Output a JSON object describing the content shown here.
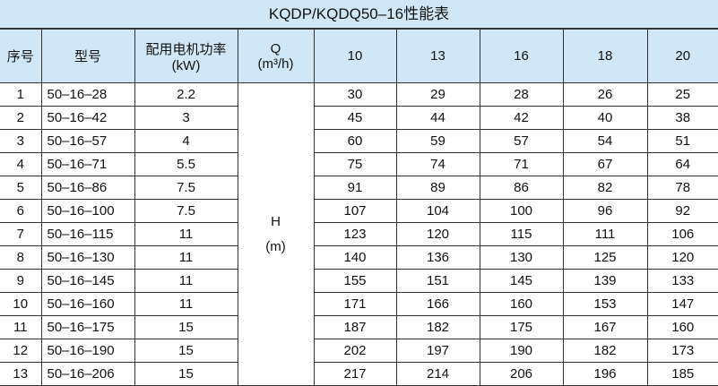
{
  "title": "KQDP/KQDQ50–16性能表",
  "header": {
    "index": "序号",
    "model": "型号",
    "power": [
      "配用电机功率",
      "(kW)"
    ],
    "q": [
      "Q",
      "(m³/h)"
    ],
    "flows": [
      10,
      13,
      16,
      18,
      20
    ]
  },
  "head_unit": [
    "H",
    "(m)"
  ],
  "rows": [
    [
      1,
      "50–16–28",
      2.2,
      30,
      29,
      28,
      26,
      25
    ],
    [
      2,
      "50–16–42",
      3,
      45,
      44,
      42,
      40,
      38
    ],
    [
      3,
      "50–16–57",
      4,
      60,
      59,
      57,
      54,
      51
    ],
    [
      4,
      "50–16–71",
      5.5,
      75,
      74,
      71,
      67,
      64
    ],
    [
      5,
      "50–16–86",
      7.5,
      91,
      89,
      86,
      82,
      78
    ],
    [
      6,
      "50–16–100",
      7.5,
      107,
      104,
      100,
      96,
      92
    ],
    [
      7,
      "50–16–115",
      11,
      123,
      120,
      115,
      111,
      106
    ],
    [
      8,
      "50–16–130",
      11,
      140,
      136,
      130,
      125,
      120
    ],
    [
      9,
      "50–16–145",
      11,
      155,
      151,
      145,
      139,
      133
    ],
    [
      10,
      "50–16–160",
      11,
      171,
      166,
      160,
      153,
      147
    ],
    [
      11,
      "50–16–175",
      15,
      187,
      182,
      175,
      167,
      160
    ],
    [
      12,
      "50–16–190",
      15,
      202,
      197,
      190,
      182,
      173
    ],
    [
      13,
      "50–16–206",
      15,
      217,
      214,
      206,
      196,
      185
    ]
  ]
}
